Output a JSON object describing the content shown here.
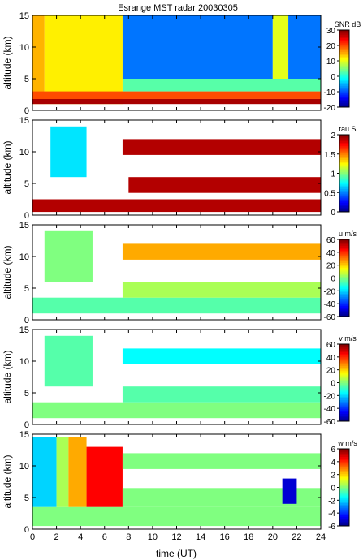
{
  "figure": {
    "title": "Esrange MST radar 20030305",
    "xlabel": "time (UT)"
  },
  "chart_data": [
    {
      "type": "heatmap",
      "title": "Esrange MST radar 20030305",
      "ylabel": "altitude (km)",
      "colorbar_label": "SNR dB",
      "xlim": [
        0,
        24
      ],
      "ylim": [
        0,
        15
      ],
      "x_ticks": [
        0,
        2,
        4,
        6,
        8,
        10,
        12,
        14,
        16,
        18,
        20,
        22,
        24
      ],
      "y_ticks": [
        0,
        5,
        10,
        15
      ],
      "clim": [
        -20,
        30
      ],
      "colorbar_ticks": [
        30,
        20,
        10,
        0,
        -10,
        -20
      ],
      "colormap": "jet",
      "features": [
        {
          "t": [
            0,
            1
          ],
          "z": [
            1,
            15
          ],
          "v": 15
        },
        {
          "t": [
            1,
            7.5
          ],
          "z": [
            1,
            15
          ],
          "v": 12
        },
        {
          "t": [
            7.5,
            20
          ],
          "z": [
            5,
            15
          ],
          "v": -8
        },
        {
          "t": [
            20,
            21.3
          ],
          "z": [
            4,
            15
          ],
          "v": 10
        },
        {
          "t": [
            21.3,
            24
          ],
          "z": [
            5,
            15
          ],
          "v": -8
        },
        {
          "t": [
            7.5,
            24
          ],
          "z": [
            3,
            5
          ],
          "v": 3
        },
        {
          "t": [
            0,
            24
          ],
          "z": [
            1.8,
            3
          ],
          "v": 20
        },
        {
          "t": [
            0,
            24
          ],
          "z": [
            1,
            1.8
          ],
          "v": 28
        }
      ]
    },
    {
      "type": "heatmap",
      "ylabel": "altitude (km)",
      "colorbar_label": "tau S",
      "xlim": [
        0,
        24
      ],
      "ylim": [
        0,
        15
      ],
      "x_ticks": [
        0,
        2,
        4,
        6,
        8,
        10,
        12,
        14,
        16,
        18,
        20,
        22,
        24
      ],
      "y_ticks": [
        0,
        5,
        10,
        15
      ],
      "clim": [
        0,
        2
      ],
      "colorbar_ticks": [
        2,
        1.5,
        1,
        0.5,
        0
      ],
      "colormap": "jet",
      "features": [
        {
          "t": [
            0,
            24
          ],
          "z": [
            0.5,
            2.5
          ],
          "v": 1.9
        },
        {
          "t": [
            1.5,
            4.5
          ],
          "z": [
            6,
            14
          ],
          "v": 0.7
        },
        {
          "t": [
            7.5,
            24
          ],
          "z": [
            9.5,
            12
          ],
          "v": 1.9
        },
        {
          "t": [
            8,
            24
          ],
          "z": [
            3.5,
            6
          ],
          "v": 1.9
        }
      ]
    },
    {
      "type": "heatmap",
      "ylabel": "altitude (km)",
      "colorbar_label": "u m/s",
      "xlim": [
        0,
        24
      ],
      "ylim": [
        0,
        15
      ],
      "x_ticks": [
        0,
        2,
        4,
        6,
        8,
        10,
        12,
        14,
        16,
        18,
        20,
        22,
        24
      ],
      "y_ticks": [
        0,
        5,
        10,
        15
      ],
      "clim": [
        -60,
        60
      ],
      "colorbar_ticks": [
        60,
        40,
        20,
        0,
        -20,
        -40,
        -60
      ],
      "colormap": "jet",
      "features": [
        {
          "t": [
            0,
            24
          ],
          "z": [
            1,
            3.5
          ],
          "v": -5
        },
        {
          "t": [
            7.5,
            24
          ],
          "z": [
            3.5,
            6
          ],
          "v": 5
        },
        {
          "t": [
            7.5,
            24
          ],
          "z": [
            9.5,
            12
          ],
          "v": 25
        },
        {
          "t": [
            1,
            5
          ],
          "z": [
            6,
            14
          ],
          "v": 0
        }
      ]
    },
    {
      "type": "heatmap",
      "ylabel": "altitude (km)",
      "colorbar_label": "v m/s",
      "xlim": [
        0,
        24
      ],
      "ylim": [
        0,
        15
      ],
      "x_ticks": [
        0,
        2,
        4,
        6,
        8,
        10,
        12,
        14,
        16,
        18,
        20,
        22,
        24
      ],
      "y_ticks": [
        0,
        5,
        10,
        15
      ],
      "clim": [
        -60,
        60
      ],
      "colorbar_ticks": [
        60,
        40,
        20,
        0,
        -20,
        -40,
        -60
      ],
      "colormap": "jet",
      "features": [
        {
          "t": [
            0,
            24
          ],
          "z": [
            1,
            3.5
          ],
          "v": 0
        },
        {
          "t": [
            7.5,
            24
          ],
          "z": [
            3.5,
            6
          ],
          "v": -5
        },
        {
          "t": [
            7.5,
            24
          ],
          "z": [
            9.5,
            12
          ],
          "v": -15
        },
        {
          "t": [
            1,
            5
          ],
          "z": [
            6,
            14
          ],
          "v": -5
        }
      ]
    },
    {
      "type": "heatmap",
      "ylabel": "altitude (km)",
      "colorbar_label": "w m/s",
      "xlim": [
        0,
        24
      ],
      "ylim": [
        0,
        15
      ],
      "x_ticks": [
        0,
        2,
        4,
        6,
        8,
        10,
        12,
        14,
        16,
        18,
        20,
        22,
        24
      ],
      "y_ticks": [
        0,
        5,
        10,
        15
      ],
      "clim": [
        -6,
        6
      ],
      "colorbar_ticks": [
        6,
        4,
        2,
        0,
        -2,
        -4,
        -6
      ],
      "colormap": "jet",
      "features": [
        {
          "t": [
            0,
            24
          ],
          "z": [
            0.5,
            3.5
          ],
          "v": 0
        },
        {
          "t": [
            0,
            2
          ],
          "z": [
            3.5,
            14.5
          ],
          "v": -2
        },
        {
          "t": [
            2,
            3
          ],
          "z": [
            3.5,
            14.5
          ],
          "v": 0.5
        },
        {
          "t": [
            3,
            4.5
          ],
          "z": [
            3.5,
            14.5
          ],
          "v": 2.5
        },
        {
          "t": [
            4.5,
            7.5
          ],
          "z": [
            3.5,
            13
          ],
          "v": 4.5
        },
        {
          "t": [
            7.5,
            24
          ],
          "z": [
            3.5,
            6.5
          ],
          "v": 0
        },
        {
          "t": [
            7.5,
            24
          ],
          "z": [
            9.5,
            12
          ],
          "v": 0
        },
        {
          "t": [
            20.8,
            22
          ],
          "z": [
            4,
            8
          ],
          "v": -5
        }
      ]
    }
  ]
}
